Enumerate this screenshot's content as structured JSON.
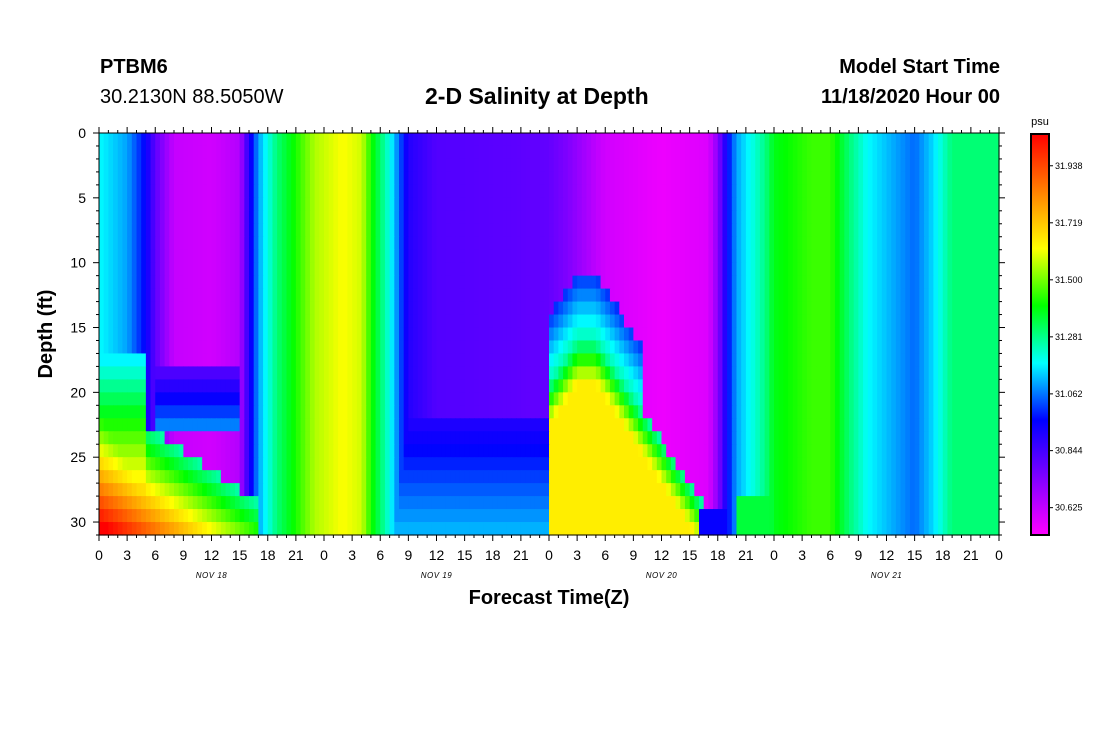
{
  "header": {
    "station": "PTBM6",
    "coords": "30.2130N 88.5050W",
    "title": "2-D Salinity at Depth",
    "model_start_label": "Model Start Time",
    "model_start_value": "11/18/2020 Hour 00"
  },
  "chart_data": {
    "type": "heatmap",
    "title": "2-D Salinity at Depth",
    "xlabel": "Forecast Time(Z)",
    "ylabel": "Depth (ft)",
    "x_tick_labels": [
      "0",
      "3",
      "6",
      "9",
      "12",
      "15",
      "18",
      "21",
      "0",
      "3",
      "6",
      "9",
      "12",
      "15",
      "18",
      "21",
      "0",
      "3",
      "6",
      "9",
      "12",
      "15",
      "18",
      "21",
      "0",
      "3",
      "6",
      "9",
      "12",
      "15",
      "18",
      "21",
      "0"
    ],
    "x_day_labels": [
      {
        "label": "NOV 18",
        "hour": 12
      },
      {
        "label": "NOV 19",
        "hour": 36
      },
      {
        "label": "NOV 20",
        "hour": 60
      },
      {
        "label": "NOV 21",
        "hour": 84
      }
    ],
    "xlim_hours": [
      0,
      96
    ],
    "y_ticks": [
      0,
      5,
      10,
      15,
      20,
      25,
      30
    ],
    "ylim": [
      0,
      31
    ],
    "y_inverted": true,
    "colorbar": {
      "unit": "psu",
      "range": [
        30.52,
        32.06
      ],
      "tick_values": [
        31.938,
        31.719,
        31.5,
        31.281,
        31.062,
        30.844,
        30.625
      ],
      "tick_labels": [
        "31.938",
        "31.719",
        "31.500",
        "31.281",
        "31.062",
        "30.844",
        "30.625"
      ],
      "colormap": [
        "#ff00ff",
        "#8000ff",
        "#0000ff",
        "#00ffff",
        "#00ff00",
        "#ffff00",
        "#ff8000",
        "#ff0000"
      ]
    },
    "surface_salinity_by_hour": [
      [
        0,
        31.18
      ],
      [
        3,
        31.1
      ],
      [
        5,
        30.95
      ],
      [
        6,
        30.8
      ],
      [
        8,
        30.62
      ],
      [
        12,
        30.6
      ],
      [
        15,
        30.65
      ],
      [
        16,
        30.9
      ],
      [
        17,
        31.1
      ],
      [
        19,
        31.3
      ],
      [
        21,
        31.42
      ],
      [
        23,
        31.55
      ],
      [
        26,
        31.62
      ],
      [
        28,
        31.58
      ],
      [
        29,
        31.42
      ],
      [
        31,
        31.2
      ],
      [
        33,
        30.9
      ],
      [
        36,
        30.82
      ],
      [
        45,
        30.8
      ],
      [
        48,
        30.79
      ],
      [
        50,
        30.74
      ],
      [
        54,
        30.6
      ],
      [
        60,
        30.55
      ],
      [
        65,
        30.58
      ],
      [
        66,
        30.72
      ],
      [
        67,
        30.95
      ],
      [
        68,
        31.1
      ],
      [
        71,
        31.28
      ],
      [
        72,
        31.38
      ],
      [
        76,
        31.45
      ],
      [
        78,
        31.45
      ],
      [
        80,
        31.3
      ],
      [
        82,
        31.18
      ],
      [
        85,
        31.1
      ],
      [
        87,
        31.05
      ],
      [
        89,
        31.15
      ],
      [
        91,
        31.3
      ],
      [
        96,
        31.3
      ]
    ],
    "notable_features": [
      {
        "feature": "low-salinity core",
        "hours": [
          6,
          15
        ],
        "depth_ft": [
          0,
          21
        ],
        "salinity": 30.6
      },
      {
        "feature": "high-salinity bottom wedge",
        "hours": [
          0,
          17
        ],
        "depth_ft": [
          22,
          31
        ],
        "salinity": 31.9
      },
      {
        "feature": "high-salinity bottom intrusion",
        "hours": [
          50,
          68
        ],
        "depth_ft": [
          16,
          31
        ],
        "salinity": 31.6
      },
      {
        "feature": "low-salinity core",
        "hours": [
          49,
          66
        ],
        "depth_ft": [
          0,
          29
        ],
        "salinity": 30.57
      }
    ]
  }
}
